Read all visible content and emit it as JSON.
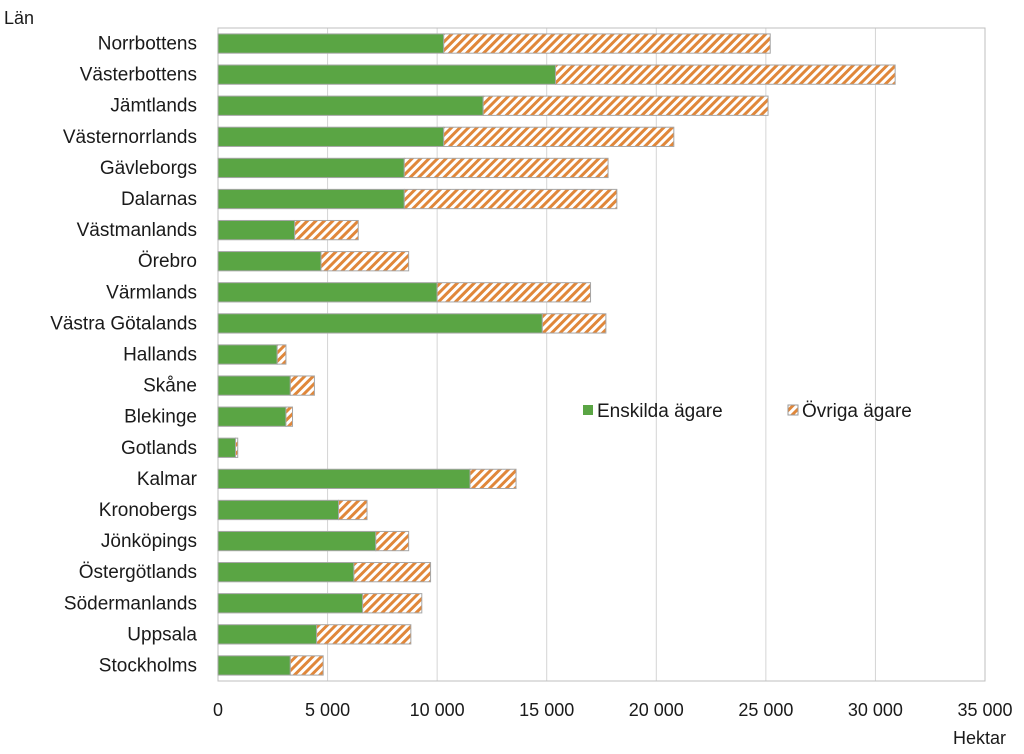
{
  "chart_data": {
    "type": "bar",
    "orientation": "horizontal",
    "stacked": true,
    "ylabel": "Län",
    "xlabel": "Hektar",
    "xlim": [
      0,
      35000
    ],
    "xticks": [
      0,
      5000,
      10000,
      15000,
      20000,
      25000,
      30000,
      35000
    ],
    "xtick_labels": [
      "0",
      "5 000",
      "10 000",
      "15 000",
      "20 000",
      "25 000",
      "30 000",
      "35 000"
    ],
    "grid": true,
    "legend_position": "center-right",
    "categories": [
      "Norrbottens",
      "Västerbottens",
      "Jämtlands",
      "Västernorrlands",
      "Gävleborgs",
      "Dalarnas",
      "Västmanlands",
      "Örebro",
      "Värmlands",
      "Västra Götalands",
      "Hallands",
      "Skåne",
      "Blekinge",
      "Gotlands",
      "Kalmar",
      "Kronobergs",
      "Jönköpings",
      "Östergötlands",
      "Södermanlands",
      "Uppsala",
      "Stockholms"
    ],
    "series": [
      {
        "name": "Enskilda ägare",
        "color": "#5aa544",
        "values": [
          10300,
          15400,
          12100,
          10300,
          8500,
          8500,
          3500,
          4700,
          10000,
          14800,
          2700,
          3300,
          3100,
          800,
          11500,
          5500,
          7200,
          6200,
          6600,
          4500,
          3300
        ]
      },
      {
        "name": "Övriga ägare",
        "color": "#e0873a",
        "values": [
          14900,
          15500,
          13000,
          10500,
          9300,
          9700,
          2900,
          4000,
          7000,
          2900,
          400,
          1100,
          300,
          100,
          2100,
          1300,
          1500,
          3500,
          2700,
          4300,
          1500
        ]
      }
    ]
  }
}
